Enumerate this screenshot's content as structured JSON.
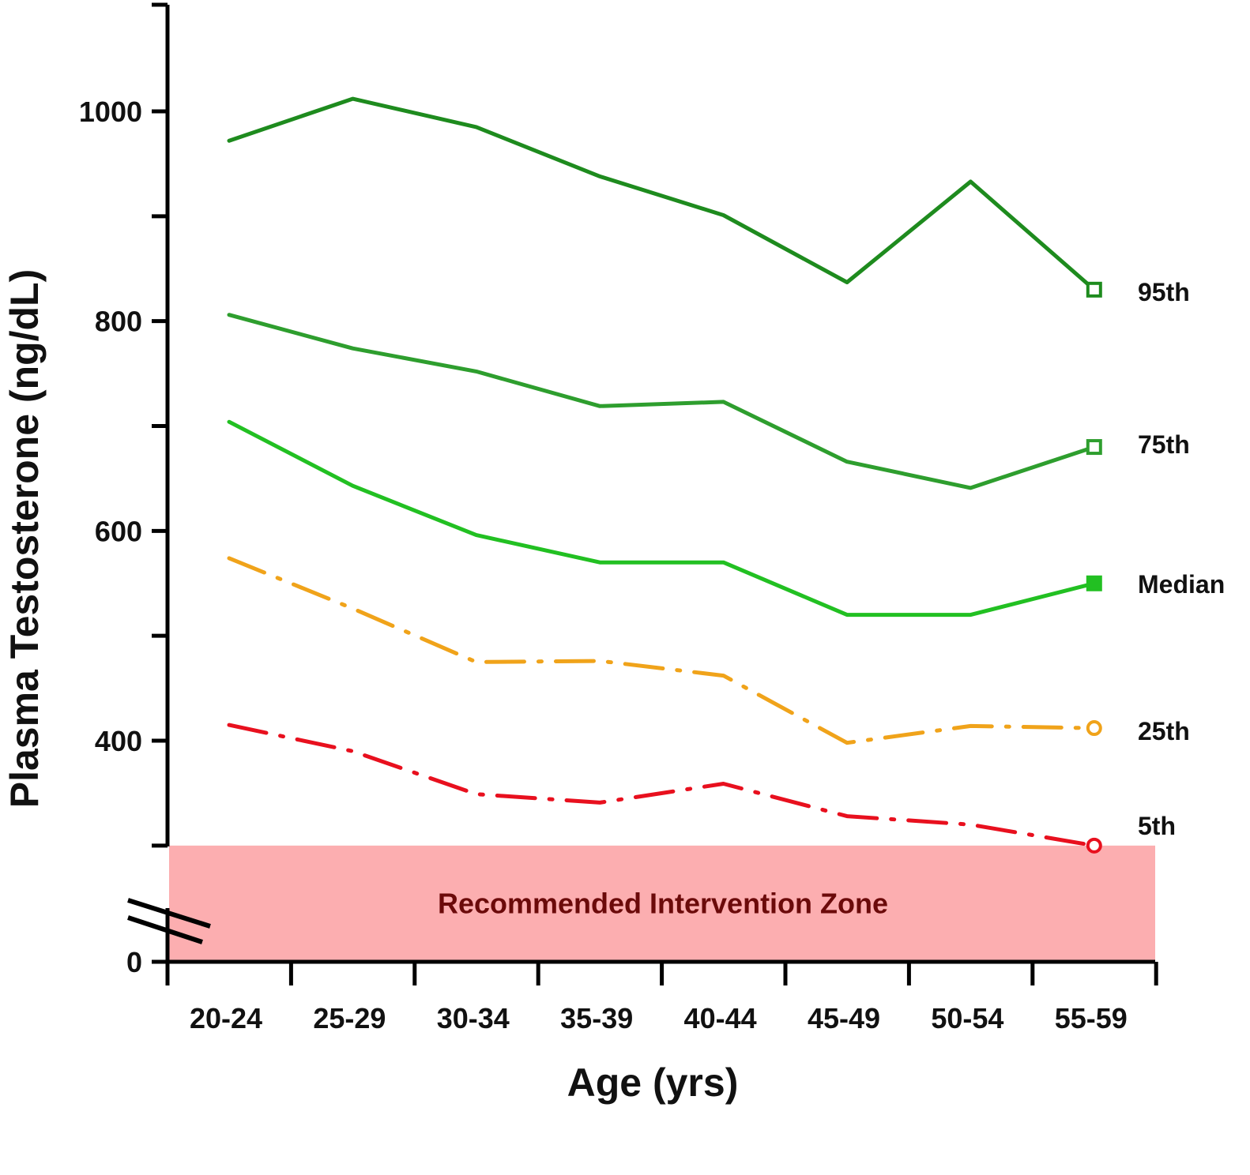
{
  "chart_data": {
    "type": "line",
    "xlabel": "Age (yrs)",
    "ylabel": "Plasma Testosterone (ng/dL)",
    "categories": [
      "20-24",
      "25-29",
      "30-34",
      "35-39",
      "40-44",
      "45-49",
      "50-54",
      "55-59"
    ],
    "yticks": [
      "0",
      "400",
      "600",
      "800",
      "1000"
    ],
    "ylim": [
      0,
      1100
    ],
    "axis_break": true,
    "grid": false,
    "legend": "inline labels at right end of each line",
    "zone": {
      "label": "Recommended Intervention Zone",
      "from": 0,
      "to": 300,
      "color": "#fcaeb0",
      "label_color": "#6b0a0a"
    },
    "series": [
      {
        "name": "95th",
        "values": [
          972,
          1012,
          985,
          938,
          901,
          837,
          933,
          830
        ],
        "color": "#1e8b1e",
        "dash": "solid",
        "marker": "open-square"
      },
      {
        "name": "75th",
        "values": [
          806,
          774,
          752,
          719,
          723,
          666,
          641,
          680
        ],
        "color": "#2e9e2e",
        "dash": "solid",
        "marker": "open-square"
      },
      {
        "name": "Median",
        "values": [
          704,
          643,
          596,
          570,
          570,
          520,
          520,
          550
        ],
        "color": "#22c022",
        "dash": "solid",
        "marker": "filled-square"
      },
      {
        "name": "25th",
        "values": [
          574,
          526,
          475,
          476,
          462,
          398,
          414,
          412
        ],
        "color": "#f0a31a",
        "dash": "dashdot",
        "marker": "open-circle"
      },
      {
        "name": "5th",
        "values": [
          415,
          390,
          349,
          341,
          359,
          328,
          320,
          300
        ],
        "color": "#e8101e",
        "dash": "dashdot",
        "marker": "open-circle"
      }
    ]
  }
}
